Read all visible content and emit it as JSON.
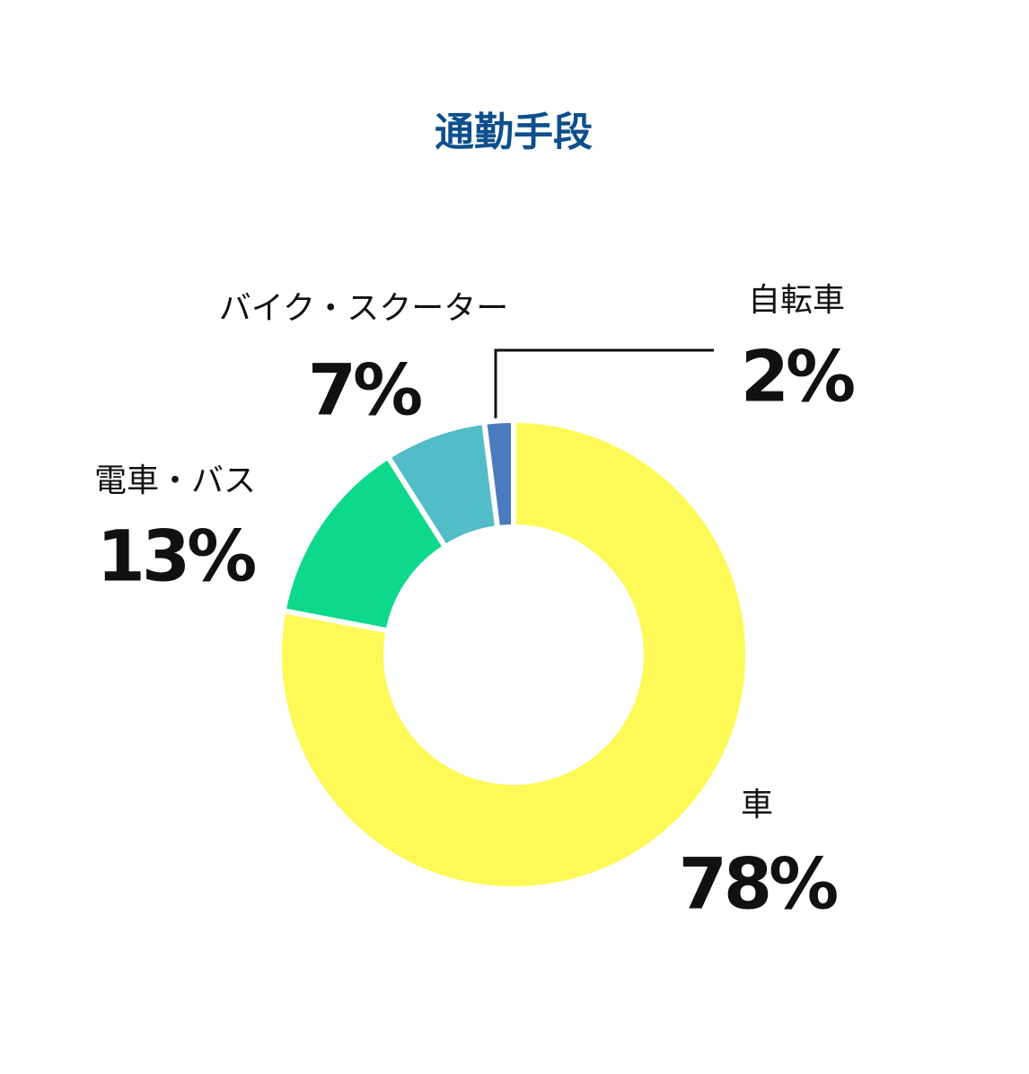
{
  "chart_data": {
    "type": "donut",
    "title": "通勤手段",
    "categories": [
      "車",
      "電車・バス",
      "バイク・スクーター",
      "自転車"
    ],
    "values": [
      78,
      13,
      7,
      2
    ],
    "value_labels": [
      "78%",
      "13%",
      "7%",
      "2%"
    ],
    "colors": [
      "#fdf956",
      "#0cd98b",
      "#52bcc8",
      "#4a7bbf"
    ]
  }
}
